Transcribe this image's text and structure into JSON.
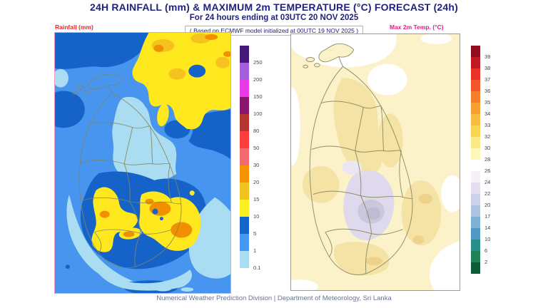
{
  "header": {
    "title": "24H RAINFALL (mm) & MAXIMUM 2m TEMPERATURE (°C) FORECAST (24h)",
    "subtitle": "For 24 hours ending at 03UTC 20 NOV 2025",
    "model_note": "( Based on ECMWF model initialized at 00UTC 19 NOV 2025 )"
  },
  "rainfall_panel": {
    "label": "Rainfall (mm)",
    "label_color": "#e8252c",
    "colorbar": [
      {
        "value": "250",
        "color": "#45187c"
      },
      {
        "value": "200",
        "color": "#a45ddb"
      },
      {
        "value": "150",
        "color": "#e83ae8"
      },
      {
        "value": "100",
        "color": "#8a156e"
      },
      {
        "value": "80",
        "color": "#b23530"
      },
      {
        "value": "50",
        "color": "#fc3d3b"
      },
      {
        "value": "30",
        "color": "#f2696e"
      },
      {
        "value": "20",
        "color": "#f59300"
      },
      {
        "value": "15",
        "color": "#f2c21e"
      },
      {
        "value": "10",
        "color": "#fdf022"
      },
      {
        "value": "5",
        "color": "#1566ca"
      },
      {
        "value": "1",
        "color": "#4698f2"
      },
      {
        "value": "0.1",
        "color": "#aadcf2"
      }
    ]
  },
  "temperature_panel": {
    "label": "Max 2m Temp. (°C)",
    "label_color": "#ea1889",
    "colorbar": [
      {
        "value": "39",
        "color": "#900d20"
      },
      {
        "value": "38",
        "color": "#c01a24"
      },
      {
        "value": "37",
        "color": "#e93127"
      },
      {
        "value": "36",
        "color": "#f4562b"
      },
      {
        "value": "35",
        "color": "#f67d2a"
      },
      {
        "value": "34",
        "color": "#f99f31"
      },
      {
        "value": "33",
        "color": "#f9bc41"
      },
      {
        "value": "32",
        "color": "#f9d551"
      },
      {
        "value": "30",
        "color": "#fbe988"
      },
      {
        "value": "28",
        "color": "#fdf7b9"
      },
      {
        "value": "26",
        "color": "#ffffff"
      },
      {
        "value": "24",
        "color": "#f7f1f7"
      },
      {
        "value": "22",
        "color": "#e4def0"
      },
      {
        "value": "20",
        "color": "#ccd1e8"
      },
      {
        "value": "17",
        "color": "#abc3e1"
      },
      {
        "value": "14",
        "color": "#7fb0d6"
      },
      {
        "value": "10",
        "color": "#4f9ac4"
      },
      {
        "value": "6",
        "color": "#2a8e8a"
      },
      {
        "value": "2",
        "color": "#1f8356"
      },
      {
        "value": "",
        "color": "#0b5e37"
      }
    ]
  },
  "footer": {
    "credit": "Numerical Weather Prediction Division | Department of Meteorology, Sri Lanka"
  },
  "map_palette": {
    "rain_light_blue": "#aadcf2",
    "rain_moderate_blue": "#4795ee",
    "rain_dark_blue": "#1563c8",
    "rain_yellow": "#ffe81e",
    "rain_amber": "#f6c21d",
    "rain_orange": "#f28f00",
    "temp_pale_yellow": "#fbf2ca",
    "temp_beige": "#f5e3a6",
    "temp_lavender": "#ded9ec",
    "temp_lavender_core": "#c3c0d4",
    "district_boundary": "#85855c"
  }
}
